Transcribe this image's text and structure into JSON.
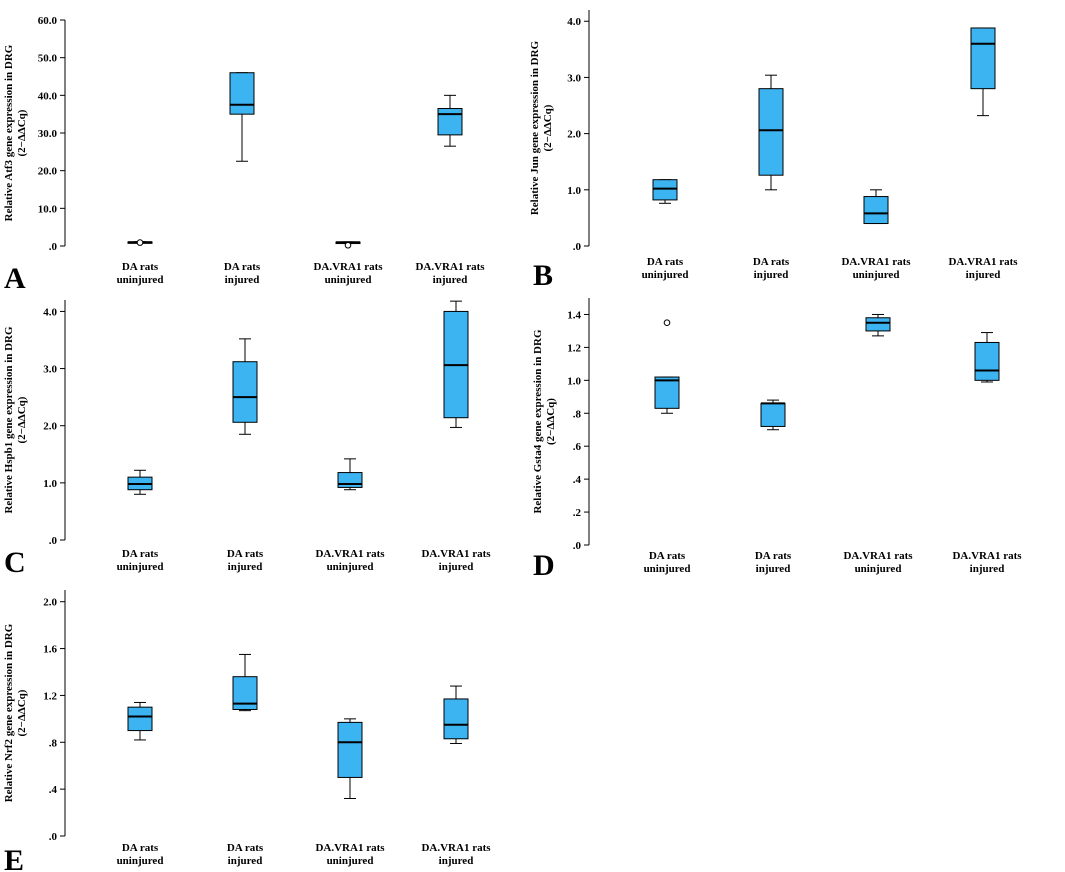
{
  "figure": {
    "categories": [
      [
        "DA rats",
        "uninjured"
      ],
      [
        "DA rats",
        "injured"
      ],
      [
        "DA.VRA1 rats",
        "uninjured"
      ],
      [
        "DA.VRA1 rats",
        "injured"
      ]
    ]
  },
  "chart_data": [
    {
      "type": "boxplot",
      "panel": "A",
      "ylabel": [
        "Relative Atf3 gene expression in DRG",
        "(2−ΔΔCq)"
      ],
      "ylim": [
        0,
        60
      ],
      "yticks": [
        0,
        10,
        20,
        30,
        40,
        50,
        60
      ],
      "ytick_labels": [
        ".0",
        "10.0",
        "20.0",
        "30.0",
        "40.0",
        "50.0",
        "60.0"
      ],
      "boxes": [
        {
          "category": "DA rats uninjured",
          "min": 0.85,
          "q1": 0.9,
          "median": 1.0,
          "q3": 1.1,
          "max": 1.15,
          "outliers": [
            0.9
          ]
        },
        {
          "category": "DA rats injured",
          "min": 22.5,
          "q1": 35.0,
          "median": 37.5,
          "q3": 46.0,
          "max": 46.0,
          "outliers": []
        },
        {
          "category": "DA.VRA1 rats uninjured",
          "min": 0.9,
          "q1": 0.95,
          "median": 1.0,
          "q3": 1.05,
          "max": 1.1,
          "outliers": [
            0.2
          ]
        },
        {
          "category": "DA.VRA1 rats injured",
          "min": 26.5,
          "q1": 29.5,
          "median": 35.0,
          "q3": 36.5,
          "max": 40.0,
          "outliers": []
        }
      ]
    },
    {
      "type": "boxplot",
      "panel": "B",
      "ylabel": [
        "Relative Jun gene expression in DRG",
        "(2−ΔΔCq)"
      ],
      "ylim": [
        0,
        4.2
      ],
      "yticks": [
        0,
        1,
        2,
        3,
        4
      ],
      "ytick_labels": [
        ".0",
        "1.0",
        "2.0",
        "3.0",
        "4.0"
      ],
      "boxes": [
        {
          "category": "DA rats uninjured",
          "min": 0.76,
          "q1": 0.82,
          "median": 1.02,
          "q3": 1.18,
          "max": 1.18,
          "outliers": []
        },
        {
          "category": "DA rats injured",
          "min": 1.0,
          "q1": 1.26,
          "median": 2.06,
          "q3": 2.8,
          "max": 3.04,
          "outliers": []
        },
        {
          "category": "DA.VRA1 rats uninjured",
          "min": 0.4,
          "q1": 0.4,
          "median": 0.58,
          "q3": 0.88,
          "max": 1.0,
          "outliers": []
        },
        {
          "category": "DA.VRA1 rats injured",
          "min": 2.32,
          "q1": 2.8,
          "median": 3.6,
          "q3": 3.88,
          "max": 3.88,
          "outliers": []
        }
      ]
    },
    {
      "type": "boxplot",
      "panel": "C",
      "ylabel": [
        "Relative Hspb1 gene expression in DRG",
        "(2−ΔΔCq)"
      ],
      "ylim": [
        0,
        4.2
      ],
      "yticks": [
        0,
        1,
        2,
        3,
        4
      ],
      "ytick_labels": [
        ".0",
        "1.0",
        "2.0",
        "3.0",
        "4.0"
      ],
      "boxes": [
        {
          "category": "DA rats uninjured",
          "min": 0.8,
          "q1": 0.88,
          "median": 0.98,
          "q3": 1.1,
          "max": 1.22,
          "outliers": []
        },
        {
          "category": "DA rats injured",
          "min": 1.85,
          "q1": 2.06,
          "median": 2.5,
          "q3": 3.12,
          "max": 3.52,
          "outliers": []
        },
        {
          "category": "DA.VRA1 rats uninjured",
          "min": 0.88,
          "q1": 0.92,
          "median": 0.98,
          "q3": 1.18,
          "max": 1.42,
          "outliers": []
        },
        {
          "category": "DA.VRA1 rats injured",
          "min": 1.97,
          "q1": 2.14,
          "median": 3.06,
          "q3": 4.0,
          "max": 4.18,
          "outliers": []
        }
      ]
    },
    {
      "type": "boxplot",
      "panel": "D",
      "ylabel": [
        "Relative  Gsta4 gene expression in DRG",
        "(2−ΔΔCq)"
      ],
      "ylim": [
        0,
        1.5
      ],
      "yticks": [
        0,
        0.2,
        0.4,
        0.6,
        0.8,
        1.0,
        1.2,
        1.4
      ],
      "ytick_labels": [
        ".0",
        ".2",
        ".4",
        ".6",
        ".8",
        "1.0",
        "1.2",
        "1.4"
      ],
      "boxes": [
        {
          "category": "DA rats uninjured",
          "min": 0.8,
          "q1": 0.83,
          "median": 1.0,
          "q3": 1.02,
          "max": 1.02,
          "outliers": [
            1.35
          ]
        },
        {
          "category": "DA rats injured",
          "min": 0.7,
          "q1": 0.72,
          "median": 0.86,
          "q3": 0.86,
          "max": 0.88,
          "outliers": []
        },
        {
          "category": "DA.VRA1 rats uninjured",
          "min": 1.27,
          "q1": 1.3,
          "median": 1.35,
          "q3": 1.38,
          "max": 1.4,
          "outliers": []
        },
        {
          "category": "DA.VRA1 rats injured",
          "min": 0.99,
          "q1": 1.0,
          "median": 1.06,
          "q3": 1.23,
          "max": 1.29,
          "outliers": []
        }
      ]
    },
    {
      "type": "boxplot",
      "panel": "E",
      "ylabel": [
        "Relative Nrf2 gene expression in DRG",
        "(2−ΔΔCq)"
      ],
      "ylim": [
        0,
        2.1
      ],
      "yticks": [
        0,
        0.4,
        0.8,
        1.2,
        1.6,
        2.0
      ],
      "ytick_labels": [
        ".0",
        ".4",
        ".8",
        "1.2",
        "1.6",
        "2.0"
      ],
      "boxes": [
        {
          "category": "DA rats uninjured",
          "min": 0.82,
          "q1": 0.9,
          "median": 1.02,
          "q3": 1.1,
          "max": 1.14,
          "outliers": []
        },
        {
          "category": "DA rats injured",
          "min": 1.07,
          "q1": 1.08,
          "median": 1.13,
          "q3": 1.36,
          "max": 1.55,
          "outliers": []
        },
        {
          "category": "DA.VRA1 rats uninjured",
          "min": 0.32,
          "q1": 0.5,
          "median": 0.8,
          "q3": 0.97,
          "max": 1.0,
          "outliers": []
        },
        {
          "category": "DA.VRA1 rats injured",
          "min": 0.79,
          "q1": 0.83,
          "median": 0.95,
          "q3": 1.17,
          "max": 1.28,
          "outliers": []
        }
      ]
    }
  ]
}
